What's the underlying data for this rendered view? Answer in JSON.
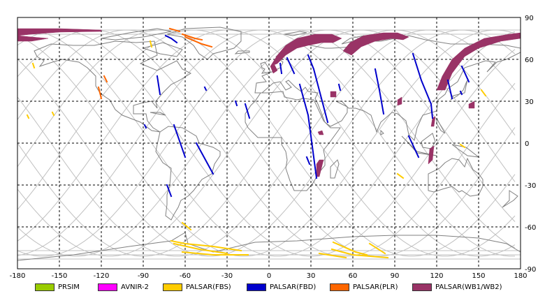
{
  "map": {
    "x_ticks": [
      "-180",
      "-150",
      "-120",
      "-90",
      "-60",
      "-30",
      "0",
      "30",
      "60",
      "90",
      "120",
      "150",
      "180"
    ],
    "y_ticks": [
      "90",
      "60",
      "30",
      "0",
      "-30",
      "-60",
      "-90"
    ],
    "x_range": [
      -180,
      180
    ],
    "y_range": [
      -90,
      90
    ],
    "grid": "dashed every 30 degrees"
  },
  "legend": [
    {
      "label": "PRSIM",
      "color": "#99cc00"
    },
    {
      "label": "AVNIR-2",
      "color": "#ff00ff"
    },
    {
      "label": "PALSAR(FBS)",
      "color": "#ffcc00"
    },
    {
      "label": "PALSAR(FBD)",
      "color": "#0000cc"
    },
    {
      "label": "PALSAR(PLR)",
      "color": "#ff6600"
    },
    {
      "label": "PALSAR(WB1/WB2)",
      "color": "#993366"
    }
  ],
  "colors": {
    "orbit": "#c0c0c0",
    "coast": "#808080",
    "fbs": "#ffcc00",
    "fbd": "#0000cc",
    "plr": "#ff6600",
    "wb": "#993366"
  }
}
